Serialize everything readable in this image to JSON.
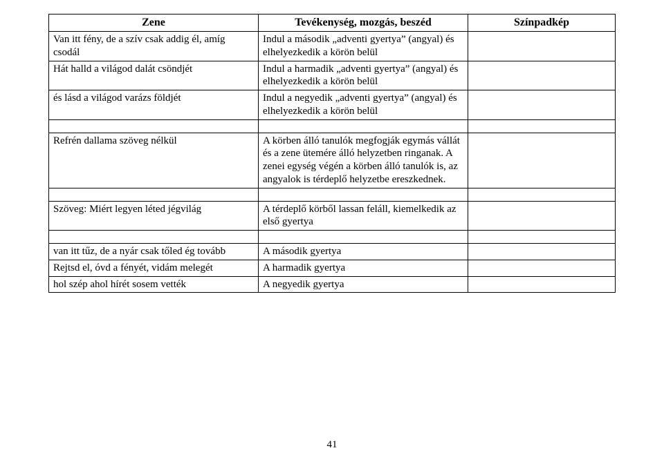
{
  "header": {
    "col1": "Zene",
    "col2": "Tevékenység, mozgás, beszéd",
    "col3": "Színpadkép"
  },
  "rows": {
    "r1": {
      "zene": "Van itt fény, de a szív csak addig él, amíg csodál",
      "tev": "Indul a második „adventi gyertya” (angyal) és elhelyezkedik a körön belül",
      "szin": ""
    },
    "r2": {
      "zene": "Hát halld a világod dalát csöndjét",
      "tev": "Indul a harmadik „adventi gyertya” (angyal) és elhelyezkedik a körön belül",
      "szin": ""
    },
    "r3": {
      "zene": "és lásd a világod varázs földjét",
      "tev": "Indul a negyedik „adventi gyertya” (angyal) és elhelyezkedik a körön belül",
      "szin": ""
    },
    "r4": {
      "zene": "Refrén dallama szöveg nélkül",
      "tev": "A körben álló tanulók megfogják egymás vállát és a zene ütemére álló helyzetben ringanak.\nA zenei egység végén a körben álló tanulók is, az angyalok is térdeplő helyzetbe ereszkednek.",
      "szin": ""
    },
    "r5": {
      "zene": "Szöveg: Miért legyen léted jégvilág",
      "tev": "A térdeplő körből lassan feláll, kiemelkedik az első gyertya",
      "szin": ""
    },
    "r6": {
      "zene": "van itt tűz, de a nyár csak tőled ég tovább",
      "tev": "A második gyertya",
      "szin": ""
    },
    "r7": {
      "zene": "Rejtsd el, óvd a fényét, vidám melegét",
      "tev": "A harmadik gyertya",
      "szin": ""
    },
    "r8": {
      "zene": "hol szép ahol hírét sosem vették",
      "tev": "A negyedik gyertya",
      "szin": ""
    }
  },
  "pageNumber": "41"
}
